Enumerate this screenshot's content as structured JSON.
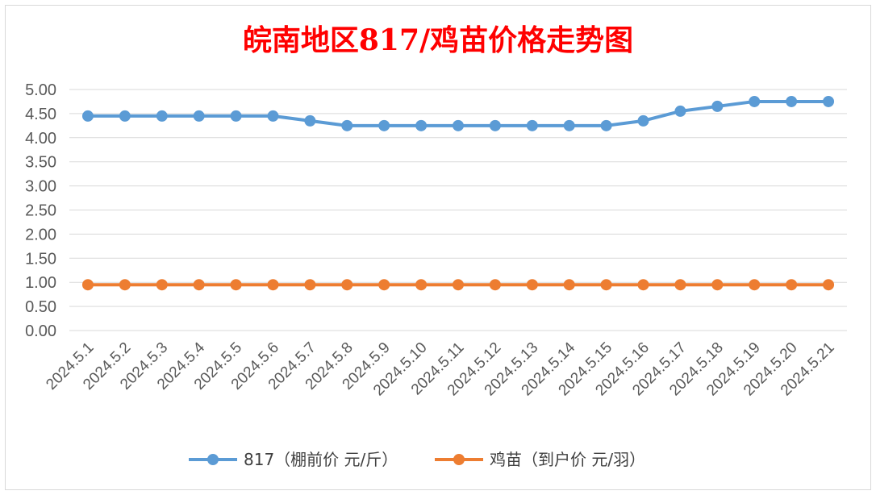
{
  "chart_data": {
    "type": "line",
    "title": "皖南地区817/鸡苗价格走势图",
    "title_color": "#ff0000",
    "categories": [
      "2024.5.1",
      "2024.5.2",
      "2024.5.3",
      "2024.5.4",
      "2024.5.5",
      "2024.5.6",
      "2024.5.7",
      "2024.5.8",
      "2024.5.9",
      "2024.5.10",
      "2024.5.11",
      "2024.5.12",
      "2024.5.13",
      "2024.5.14",
      "2024.5.15",
      "2024.5.16",
      "2024.5.17",
      "2024.5.18",
      "2024.5.19",
      "2024.5.20",
      "2024.5.21"
    ],
    "y_ticks": [
      "0.00",
      "0.50",
      "1.00",
      "1.50",
      "2.00",
      "2.50",
      "3.00",
      "3.50",
      "4.00",
      "4.50",
      "5.00"
    ],
    "ylim": [
      0,
      5
    ],
    "grid": true,
    "legend_position": "bottom",
    "series": [
      {
        "name": "817（棚前价 元/斤）",
        "color": "#5b9bd5",
        "values": [
          4.45,
          4.45,
          4.45,
          4.45,
          4.45,
          4.45,
          4.35,
          4.25,
          4.25,
          4.25,
          4.25,
          4.25,
          4.25,
          4.25,
          4.25,
          4.35,
          4.55,
          4.65,
          4.75,
          4.75,
          4.75
        ]
      },
      {
        "name": "鸡苗（到户价 元/羽）",
        "color": "#ed7d31",
        "values": [
          0.95,
          0.95,
          0.95,
          0.95,
          0.95,
          0.95,
          0.95,
          0.95,
          0.95,
          0.95,
          0.95,
          0.95,
          0.95,
          0.95,
          0.95,
          0.95,
          0.95,
          0.95,
          0.95,
          0.95,
          0.95
        ]
      }
    ]
  }
}
